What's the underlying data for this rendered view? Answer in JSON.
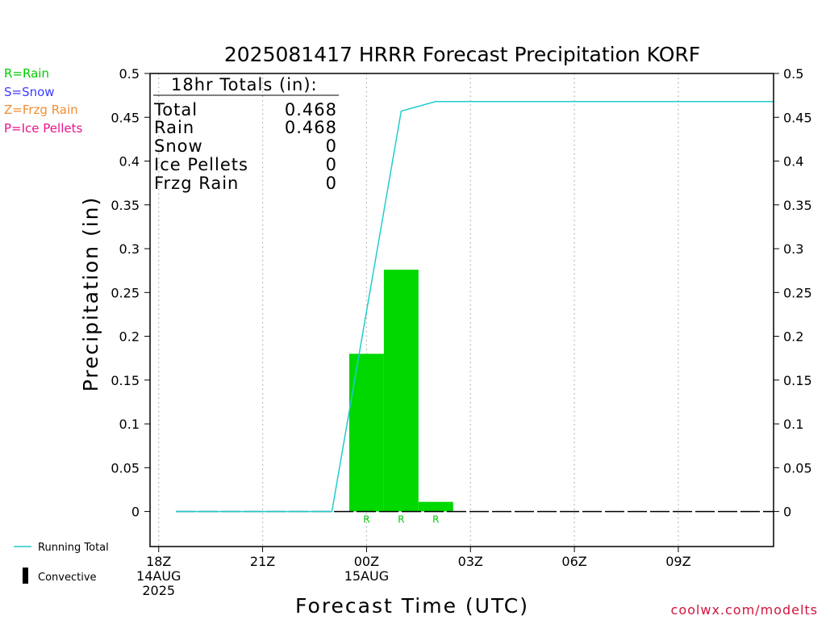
{
  "chart_data": {
    "type": "bar",
    "title": "2025081417 HRRR Forecast Precipitation KORF",
    "xlabel": "Forecast Time (UTC)",
    "ylabel": "Precipitation (in)",
    "ylim": [
      -0.04,
      0.5
    ],
    "xlim": [
      -0.25,
      17.75
    ],
    "yticks": [
      {
        "v": 0,
        "label": "0"
      },
      {
        "v": 0.05,
        "label": "0.05"
      },
      {
        "v": 0.1,
        "label": "0.1"
      },
      {
        "v": 0.15,
        "label": "0.15"
      },
      {
        "v": 0.2,
        "label": "0.2"
      },
      {
        "v": 0.25,
        "label": "0.25"
      },
      {
        "v": 0.3,
        "label": "0.3"
      },
      {
        "v": 0.35,
        "label": "0.35"
      },
      {
        "v": 0.4,
        "label": "0.4"
      },
      {
        "v": 0.45,
        "label": "0.45"
      },
      {
        "v": 0.5,
        "label": "0.5"
      }
    ],
    "xticks": [
      {
        "h": 0,
        "lines": [
          "18Z",
          "14AUG",
          "2025"
        ]
      },
      {
        "h": 3,
        "lines": [
          "21Z"
        ]
      },
      {
        "h": 6,
        "lines": [
          "00Z",
          "15AUG"
        ]
      },
      {
        "h": 9,
        "lines": [
          "03Z"
        ]
      },
      {
        "h": 12,
        "lines": [
          "06Z"
        ]
      },
      {
        "h": 15,
        "lines": [
          "09Z"
        ]
      }
    ],
    "bars": [
      {
        "h0": 5.5,
        "h1": 6.5,
        "value": 0.18,
        "type": "R"
      },
      {
        "h0": 6.5,
        "h1": 7.5,
        "value": 0.276,
        "type": "R"
      },
      {
        "h0": 7.5,
        "h1": 8.5,
        "value": 0.011,
        "type": "R"
      }
    ],
    "running_total": {
      "name": "Running Total",
      "h": [
        -0.25,
        5.0,
        7.0,
        8.0,
        17.75
      ],
      "values": [
        0,
        0,
        0.457,
        0.468,
        0.468
      ]
    },
    "zero_line": {
      "h0": -0.25,
      "h1": 17.75,
      "value": 0
    },
    "grid": "vertical-dotted",
    "legend_position": "left",
    "legend_types": [
      {
        "label": "R=Rain",
        "color": "#00cc00"
      },
      {
        "label": "S=Snow",
        "color": "#3c3cff"
      },
      {
        "label": "Z=Frzg Rain",
        "color": "#f08c32"
      },
      {
        "label": "P=Ice Pellets",
        "color": "#e6148c"
      }
    ],
    "legend_lines": [
      {
        "label": "Running Total",
        "kind": "line",
        "color": "#22cccc"
      },
      {
        "label": "Convective",
        "kind": "bar",
        "color": "#000000"
      }
    ],
    "totals": {
      "heading": "18hr Totals (in):",
      "rows": [
        {
          "label": "Total",
          "value": "0.468"
        },
        {
          "label": "Rain",
          "value": "0.468"
        },
        {
          "label": "Snow",
          "value": "0"
        },
        {
          "label": "Ice Pellets",
          "value": "0"
        },
        {
          "label": "Frzg Rain",
          "value": "0"
        }
      ]
    },
    "colors": {
      "rain_bar": "#00d800",
      "running_total": "#22cccc",
      "axis": "#000000",
      "grid": "#aaaaaa"
    }
  },
  "credit": "coolwx.com/modelts",
  "credit_color": "#d2143c"
}
